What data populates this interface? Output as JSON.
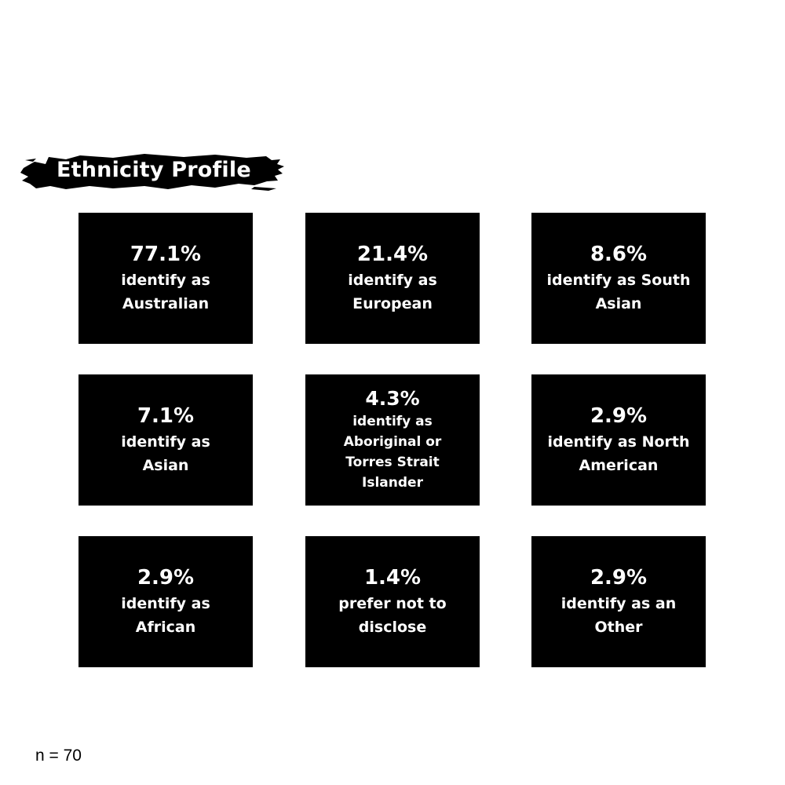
{
  "title": "Ethnicity Profile",
  "cards": [
    {
      "percent": "77.1%",
      "description": "identify as Australian"
    },
    {
      "percent": "21.4%",
      "description": "identify as European"
    },
    {
      "percent": "8.6%",
      "description": "identify as South Asian"
    },
    {
      "percent": "7.1%",
      "description": "identify as Asian"
    },
    {
      "percent": "4.3%",
      "description": "identify as Aboriginal or Torres Strait Islander"
    },
    {
      "percent": "2.9%",
      "description": "identify as North American"
    },
    {
      "percent": "2.9%",
      "description": "identify as African"
    },
    {
      "percent": "1.4%",
      "description": "prefer not to disclose"
    },
    {
      "percent": "2.9%",
      "description": "identify as an Other"
    }
  ],
  "footnote": "n = 70",
  "colors": {
    "card_background": "#000000",
    "card_text": "#ffffff",
    "page_background": "#ffffff"
  }
}
